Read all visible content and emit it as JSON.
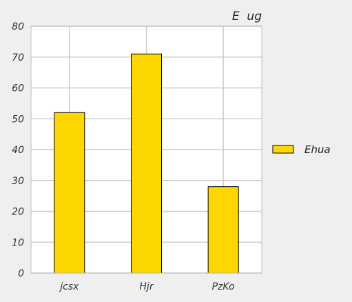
{
  "chart_data": {
    "type": "bar",
    "title": "E  ug",
    "categories": [
      "jcsx",
      "Hjr",
      "PzKo"
    ],
    "series": [
      {
        "name": "Ehua",
        "values": [
          52,
          71,
          28
        ],
        "color": "#FFD700"
      }
    ],
    "ylim": [
      0,
      80
    ],
    "yticks": [
      0,
      10,
      20,
      30,
      40,
      50,
      60,
      70,
      80
    ],
    "grid": true,
    "legend_position": "right",
    "colors": {
      "background": "#efefef",
      "plot_background": "#ffffff",
      "grid": "#cccccc",
      "bar_edge": "#000000"
    }
  }
}
